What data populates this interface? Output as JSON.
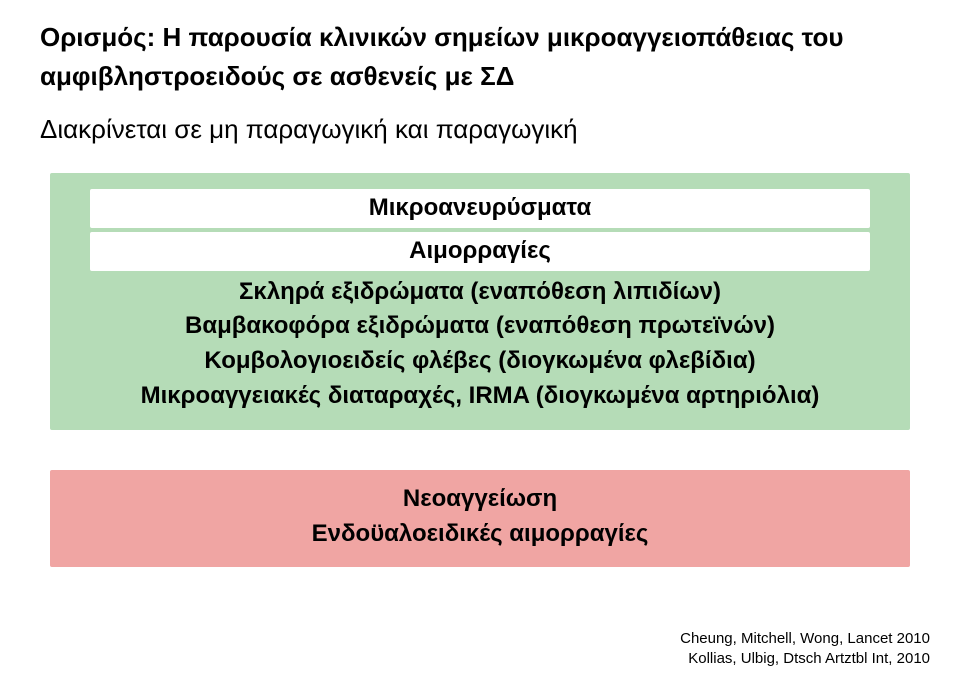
{
  "intro_line1": "Ορισμός: Η παρουσία κλινικών σημείων μικροαγγειοπάθειας του",
  "intro_line2": "αμφιβληστροειδούς σε ασθενείς με ΣΔ",
  "sub": "Διακρίνεται σε μη παραγωγική και παραγωγική",
  "green": {
    "l1": "Μικροανευρύσματα",
    "l2": "Αιμορραγίες",
    "l3": "Σκληρά εξιδρώματα (εναπόθεση λιπιδίων)",
    "l4": "Βαμβακοφόρα εξιδρώματα (εναπόθεση πρωτεϊνών)",
    "l5": "Κομβολογιοειδείς φλέβες (διογκωμένα φλεβίδια)",
    "l6": "Μικροαγγειακές διαταραχές, IRMA (διογκωμένα αρτηριόλια)"
  },
  "red": {
    "l1": "Νεοαγγείωση",
    "l2": "Ενδοϋαλοειδικές αιμορραγίες"
  },
  "cite1": "Cheung, Mitchell, Wong, Lancet 2010",
  "cite2": "Kollias, Ulbig, Dtsch Artztbl Int, 2010",
  "colors": {
    "green_bg": "#b5dcb7",
    "red_bg": "#f0a5a3",
    "white": "#ffffff",
    "text": "#000000"
  }
}
